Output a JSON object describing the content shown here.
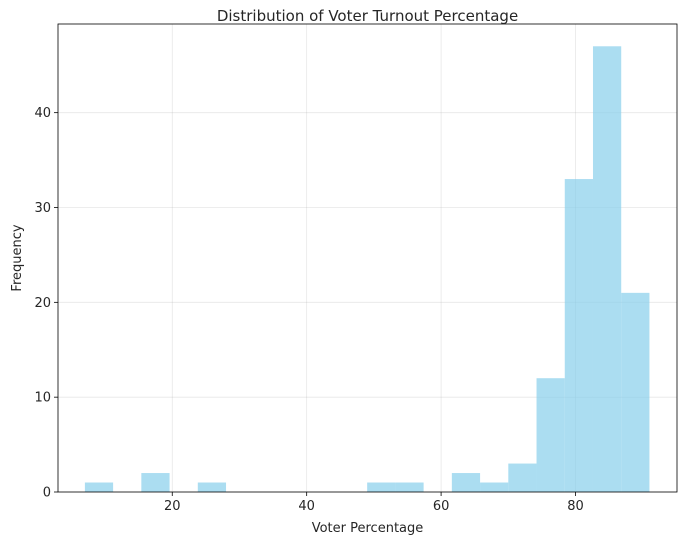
{
  "chart_data": {
    "type": "bar",
    "title": "Distribution of Voter Turnout Percentage",
    "xlabel": "Voter Percentage",
    "ylabel": "Frequency",
    "xlim": [
      3.0,
      95.1
    ],
    "ylim": [
      0,
      49.35
    ],
    "xticks": [
      20,
      40,
      60,
      80
    ],
    "yticks": [
      0,
      10,
      20,
      30,
      40
    ],
    "grid": true,
    "bar_color": "#87CEEB",
    "bar_opacity": 0.7,
    "bins": [
      {
        "x0": 7.0,
        "x1": 11.2,
        "count": 1
      },
      {
        "x0": 11.2,
        "x1": 15.4,
        "count": 0
      },
      {
        "x0": 15.4,
        "x1": 19.6,
        "count": 2
      },
      {
        "x0": 19.6,
        "x1": 23.8,
        "count": 0
      },
      {
        "x0": 23.8,
        "x1": 28.0,
        "count": 1
      },
      {
        "x0": 28.0,
        "x1": 32.2,
        "count": 0
      },
      {
        "x0": 32.2,
        "x1": 36.4,
        "count": 0
      },
      {
        "x0": 36.4,
        "x1": 40.6,
        "count": 0
      },
      {
        "x0": 40.6,
        "x1": 44.8,
        "count": 0
      },
      {
        "x0": 44.8,
        "x1": 49.0,
        "count": 0
      },
      {
        "x0": 49.0,
        "x1": 53.2,
        "count": 1
      },
      {
        "x0": 53.2,
        "x1": 57.4,
        "count": 1
      },
      {
        "x0": 57.4,
        "x1": 61.6,
        "count": 0
      },
      {
        "x0": 61.6,
        "x1": 65.8,
        "count": 2
      },
      {
        "x0": 65.8,
        "x1": 70.0,
        "count": 1
      },
      {
        "x0": 70.0,
        "x1": 74.2,
        "count": 3
      },
      {
        "x0": 74.2,
        "x1": 78.4,
        "count": 12
      },
      {
        "x0": 78.4,
        "x1": 82.6,
        "count": 33
      },
      {
        "x0": 82.6,
        "x1": 86.8,
        "count": 47
      },
      {
        "x0": 86.8,
        "x1": 91.0,
        "count": 21
      }
    ]
  }
}
